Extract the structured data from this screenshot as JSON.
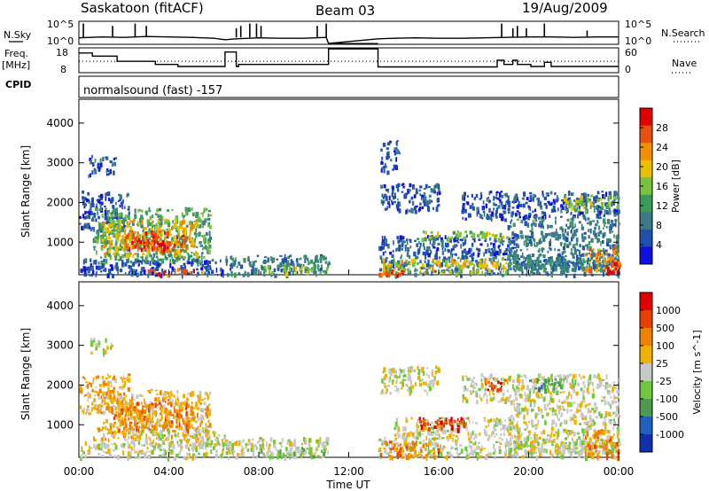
{
  "header": {
    "station": "Saskatoon (fitACF)",
    "beam": "Beam 03",
    "date": "19/Aug/2009"
  },
  "left_labels": {
    "nsky": "N.Sky",
    "freq": "Freq.",
    "freq_unit": "[MHz]",
    "cpid": "CPID"
  },
  "right_labels": {
    "nsearch": "N.Search",
    "nave": "Nave"
  },
  "program_text": "normalsound (fast) -157",
  "colors": {
    "power_scale": [
      "#1010e0",
      "#2050b0",
      "#3a7a8a",
      "#3c9a5a",
      "#7cc040",
      "#e8c000",
      "#f09000",
      "#e85010",
      "#e00000"
    ],
    "velocity_scale": [
      "#1030b0",
      "#2060c0",
      "#4a9a50",
      "#70c840",
      "#c8c8c8",
      "#f0b000",
      "#f08000",
      "#e84000",
      "#e00000"
    ]
  },
  "chart_data": [
    {
      "type": "line",
      "name_label": "N.Sky / N.Search",
      "ytick_labels": [
        "10^5",
        "10^0"
      ],
      "right_tick_labels": [
        "10^5",
        "10^0"
      ],
      "x_hours": [
        0,
        1,
        2,
        3,
        4,
        5,
        6,
        6.5,
        7,
        8,
        9,
        10,
        11,
        11.1,
        13.3,
        14,
        15,
        16,
        17,
        18,
        19,
        20,
        21,
        22,
        23,
        24
      ],
      "y_log": [
        1.4,
        1.6,
        1.5,
        1.7,
        1.6,
        1.5,
        1.3,
        1.0,
        1.2,
        1.4,
        1.3,
        1.3,
        1.5,
        0.2,
        1.2,
        1.3,
        1.4,
        1.3,
        1.3,
        1.4,
        1.5,
        1.6,
        1.6,
        1.5,
        1.6,
        1.6
      ],
      "spikes": [
        {
          "x": 0.2,
          "y": 4.5
        },
        {
          "x": 1.5,
          "y": 4.0
        },
        {
          "x": 2.5,
          "y": 4.5
        },
        {
          "x": 3.0,
          "y": 4.0
        },
        {
          "x": 7.0,
          "y": 3.5
        },
        {
          "x": 7.2,
          "y": 4.0
        },
        {
          "x": 7.6,
          "y": 4.5
        },
        {
          "x": 7.9,
          "y": 4.5
        },
        {
          "x": 8.1,
          "y": 4.0
        },
        {
          "x": 10.6,
          "y": 4.0
        },
        {
          "x": 11.0,
          "y": 4.5
        },
        {
          "x": 18.8,
          "y": 4.5
        },
        {
          "x": 19.3,
          "y": 3.5
        },
        {
          "x": 19.5,
          "y": 4.0
        },
        {
          "x": 19.9,
          "y": 3.5
        },
        {
          "x": 20.7,
          "y": 4.5
        },
        {
          "x": 22.6,
          "y": 3.0
        }
      ],
      "ylim": [
        0,
        5
      ]
    },
    {
      "type": "line",
      "name_label": "Freq. [MHz] / Nave",
      "ytick_labels": [
        "18",
        "8"
      ],
      "right_tick_labels": [
        "60",
        "0"
      ],
      "freq_steps": [
        {
          "x0": 0,
          "x1": 0.6,
          "y": 16.5
        },
        {
          "x0": 0.6,
          "x1": 1.7,
          "y": 15.0
        },
        {
          "x0": 1.7,
          "x1": 3.4,
          "y": 12.5
        },
        {
          "x0": 3.4,
          "x1": 4.4,
          "y": 11.0
        },
        {
          "x0": 4.4,
          "x1": 5.6,
          "y": 10.0
        },
        {
          "x0": 5.6,
          "x1": 6.5,
          "y": 10.0
        },
        {
          "x0": 6.5,
          "x1": 7.0,
          "y": 17.0
        },
        {
          "x0": 7.0,
          "x1": 7.1,
          "y": 10.0
        },
        {
          "x0": 7.1,
          "x1": 11.1,
          "y": 11.0
        },
        {
          "x0": 11.1,
          "x1": 13.3,
          "y": 18.5
        },
        {
          "x0": 13.3,
          "x1": 18.6,
          "y": 9.8
        },
        {
          "x0": 18.6,
          "x1": 18.9,
          "y": 13.0
        },
        {
          "x0": 18.9,
          "x1": 19.3,
          "y": 11.0
        },
        {
          "x0": 19.3,
          "x1": 19.5,
          "y": 13.0
        },
        {
          "x0": 19.5,
          "x1": 20.1,
          "y": 11.0
        },
        {
          "x0": 20.1,
          "x1": 20.7,
          "y": 10.0
        },
        {
          "x0": 20.7,
          "x1": 21.0,
          "y": 12.0
        },
        {
          "x0": 21.0,
          "x1": 24,
          "y": 10.0
        }
      ],
      "nave_level": 12.5,
      "ylim": [
        7,
        19
      ]
    },
    {
      "type": "heatmap",
      "name": "Power",
      "ylabel": "Slant Range [km]",
      "yticks": [
        1000,
        2000,
        3000,
        4000
      ],
      "ylim": [
        180,
        4600
      ],
      "xlim": [
        0,
        24
      ],
      "colorbar_label": "Power [dB]",
      "colorbar_ticks": [
        "28",
        "24",
        "20",
        "16",
        "12",
        "8",
        "4"
      ],
      "blobs": [
        {
          "x0": 0.0,
          "x1": 2.2,
          "r0": 1300,
          "r1": 2300,
          "level": 1
        },
        {
          "x0": 0.4,
          "x1": 1.6,
          "r0": 2700,
          "r1": 3200,
          "level": 1
        },
        {
          "x0": 0.6,
          "x1": 5.8,
          "r0": 500,
          "r1": 1900,
          "level": 3
        },
        {
          "x0": 1.0,
          "x1": 5.2,
          "r0": 700,
          "r1": 1600,
          "level": 5
        },
        {
          "x0": 2.0,
          "x1": 4.8,
          "r0": 800,
          "r1": 1300,
          "level": 7
        },
        {
          "x0": 2.5,
          "x1": 4.0,
          "r0": 850,
          "r1": 1050,
          "level": 8
        },
        {
          "x0": 0.0,
          "x1": 7.0,
          "r0": 200,
          "r1": 600,
          "level": 1
        },
        {
          "x0": 3.0,
          "x1": 5.5,
          "r0": 200,
          "r1": 350,
          "level": 7
        },
        {
          "x0": 6.5,
          "x1": 11.1,
          "r0": 200,
          "r1": 700,
          "level": 2
        },
        {
          "x0": 8.0,
          "x1": 11.0,
          "r0": 250,
          "r1": 450,
          "level": 4
        },
        {
          "x0": 13.3,
          "x1": 24.0,
          "r0": 200,
          "r1": 700,
          "level": 2
        },
        {
          "x0": 13.3,
          "x1": 19.0,
          "r0": 250,
          "r1": 600,
          "level": 5
        },
        {
          "x0": 13.3,
          "x1": 14.5,
          "r0": 200,
          "r1": 350,
          "level": 7
        },
        {
          "x0": 13.3,
          "x1": 19.5,
          "r0": 700,
          "r1": 1200,
          "level": 1
        },
        {
          "x0": 15.0,
          "x1": 19.0,
          "r0": 1100,
          "r1": 1300,
          "level": 4
        },
        {
          "x0": 13.4,
          "x1": 16.0,
          "r0": 1800,
          "r1": 2500,
          "level": 1
        },
        {
          "x0": 13.4,
          "x1": 14.2,
          "r0": 2800,
          "r1": 3600,
          "level": 1
        },
        {
          "x0": 17.0,
          "x1": 24.0,
          "r0": 1600,
          "r1": 2300,
          "level": 1
        },
        {
          "x0": 21.5,
          "x1": 24.0,
          "r0": 1800,
          "r1": 2200,
          "level": 4
        },
        {
          "x0": 19.0,
          "x1": 24.0,
          "r0": 300,
          "r1": 1600,
          "level": 2
        },
        {
          "x0": 22.5,
          "x1": 24.0,
          "r0": 300,
          "r1": 900,
          "level": 6
        },
        {
          "x0": 23.4,
          "x1": 24.0,
          "r0": 250,
          "r1": 500,
          "level": 8
        }
      ]
    },
    {
      "type": "heatmap",
      "name": "Velocity",
      "ylabel": "Slant Range [km]",
      "xlabel": "Time UT",
      "xtick_labels": [
        "00:00",
        "04:00",
        "08:00",
        "12:00",
        "16:00",
        "20:00",
        "00:00"
      ],
      "xticks": [
        0,
        4,
        8,
        12,
        16,
        20,
        24
      ],
      "yticks": [
        1000,
        2000,
        3000,
        4000
      ],
      "ylim": [
        180,
        4600
      ],
      "xlim": [
        0,
        24
      ],
      "colorbar_label": "Velocity [m s^-1]",
      "colorbar_ticks": [
        "1000",
        "500",
        "100",
        "25",
        "-25",
        "-100",
        "-500",
        "-1000"
      ],
      "blobs": [
        {
          "x0": 0.0,
          "x1": 2.2,
          "r0": 1300,
          "r1": 2300,
          "level": 5
        },
        {
          "x0": 0.5,
          "x1": 1.5,
          "r0": 2800,
          "r1": 3200,
          "level": 4
        },
        {
          "x0": 0.6,
          "x1": 5.8,
          "r0": 600,
          "r1": 1900,
          "level": 5
        },
        {
          "x0": 1.5,
          "x1": 5.0,
          "r0": 900,
          "r1": 1600,
          "level": 6
        },
        {
          "x0": 0.0,
          "x1": 7.0,
          "r0": 200,
          "r1": 600,
          "level": 4
        },
        {
          "x0": 2.0,
          "x1": 6.5,
          "r0": 500,
          "r1": 900,
          "level": 4
        },
        {
          "x0": 6.5,
          "x1": 11.1,
          "r0": 200,
          "r1": 700,
          "level": 4
        },
        {
          "x0": 8.0,
          "x1": 11.0,
          "r0": 200,
          "r1": 450,
          "level": 3
        },
        {
          "x0": 13.3,
          "x1": 24.0,
          "r0": 200,
          "r1": 700,
          "level": 4
        },
        {
          "x0": 13.3,
          "x1": 16.0,
          "r0": 200,
          "r1": 600,
          "level": 6
        },
        {
          "x0": 14.0,
          "x1": 19.5,
          "r0": 700,
          "r1": 1200,
          "level": 4
        },
        {
          "x0": 15.0,
          "x1": 17.5,
          "r0": 900,
          "r1": 1200,
          "level": 7
        },
        {
          "x0": 13.4,
          "x1": 16.0,
          "r0": 1800,
          "r1": 2500,
          "level": 4
        },
        {
          "x0": 17.0,
          "x1": 24.0,
          "r0": 1600,
          "r1": 2300,
          "level": 4
        },
        {
          "x0": 19.0,
          "x1": 24.0,
          "r0": 300,
          "r1": 1600,
          "level": 4
        },
        {
          "x0": 22.5,
          "x1": 24.0,
          "r0": 200,
          "r1": 900,
          "level": 6
        },
        {
          "x0": 18.0,
          "x1": 19.0,
          "r0": 1900,
          "r1": 2200,
          "level": 7
        },
        {
          "x0": 20.0,
          "x1": 21.5,
          "r0": 1900,
          "r1": 2200,
          "level": 2
        }
      ]
    }
  ]
}
